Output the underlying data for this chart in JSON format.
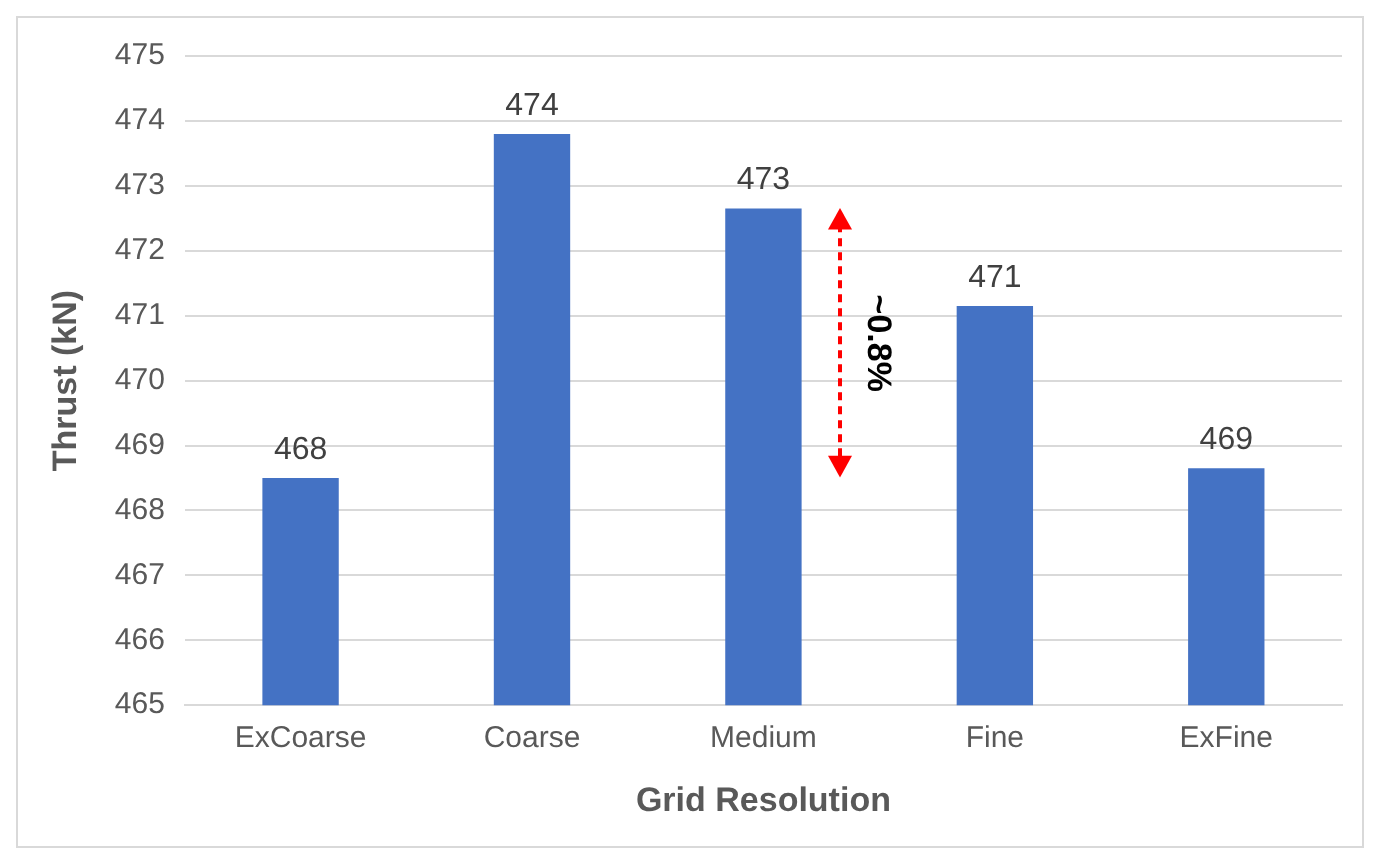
{
  "chart_data": {
    "type": "bar",
    "xlabel": "Grid Resolution",
    "ylabel": "Thrust (kN)",
    "categories": [
      "ExCoarse",
      "Coarse",
      "Medium",
      "Fine",
      "ExFine"
    ],
    "values": [
      468.5,
      473.8,
      472.65,
      471.15,
      468.65
    ],
    "value_labels": [
      "468",
      "474",
      "473",
      "471",
      "469"
    ],
    "color": "#4472c4",
    "ylim": [
      465,
      475
    ],
    "yticks": [
      465,
      466,
      467,
      468,
      469,
      470,
      471,
      472,
      473,
      474,
      475
    ],
    "grid": "y",
    "legend": false,
    "annotations": [
      "~0.8%"
    ]
  }
}
